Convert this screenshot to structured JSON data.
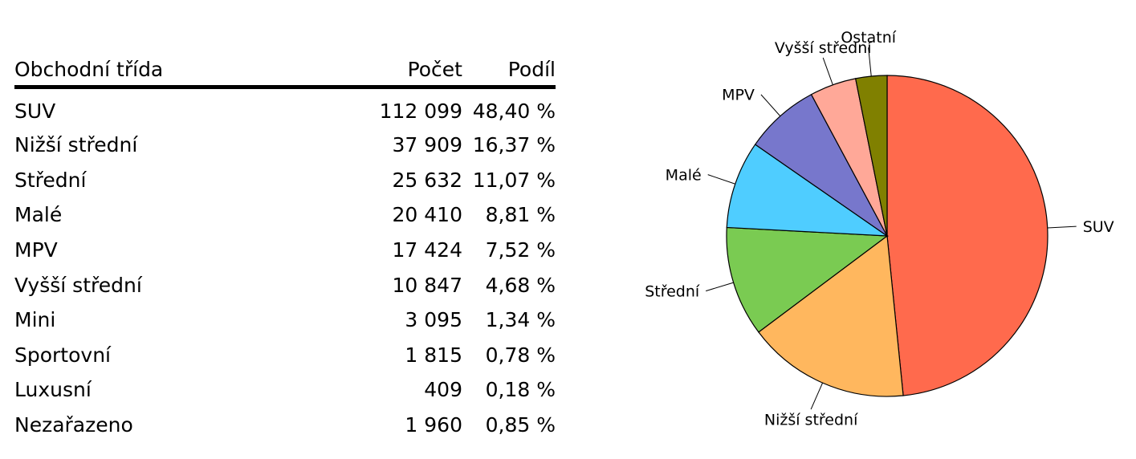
{
  "table": {
    "headers": {
      "class": "Obchodní třída",
      "count": "Počet",
      "share": "Podíl"
    },
    "rows": [
      {
        "class": "SUV",
        "count": "112 099",
        "share": "48,40 %"
      },
      {
        "class": "Nižší střední",
        "count": "37 909",
        "share": "16,37 %"
      },
      {
        "class": "Střední",
        "count": "25 632",
        "share": "11,07 %"
      },
      {
        "class": "Malé",
        "count": "20 410",
        "share": "8,81 %"
      },
      {
        "class": "MPV",
        "count": "17 424",
        "share": "7,52 %"
      },
      {
        "class": "Vyšší střední",
        "count": "10 847",
        "share": "4,68 %"
      },
      {
        "class": "Mini",
        "count": "3 095",
        "share": "1,34 %"
      },
      {
        "class": "Sportovní",
        "count": "1 815",
        "share": "0,78 %"
      },
      {
        "class": "Luxusní",
        "count": "409",
        "share": "0,18 %"
      },
      {
        "class": "Nezařazeno",
        "count": "1 960",
        "share": "0,85 %"
      }
    ]
  },
  "chart_data": {
    "type": "pie",
    "title": "",
    "start_angle_deg": 0,
    "direction": "clockwise",
    "slices": [
      {
        "label": "SUV",
        "value": 48.4,
        "color": "#ff6a4d"
      },
      {
        "label": "Nižší střední",
        "value": 16.37,
        "color": "#ffb75e"
      },
      {
        "label": "Střední",
        "value": 11.07,
        "color": "#7acb52"
      },
      {
        "label": "Malé",
        "value": 8.81,
        "color": "#4fcdff"
      },
      {
        "label": "MPV",
        "value": 7.52,
        "color": "#7777cc"
      },
      {
        "label": "Vyšší střední",
        "value": 4.68,
        "color": "#ffa898"
      },
      {
        "label": "Ostatní",
        "value": 3.15,
        "color": "#808000"
      }
    ]
  }
}
